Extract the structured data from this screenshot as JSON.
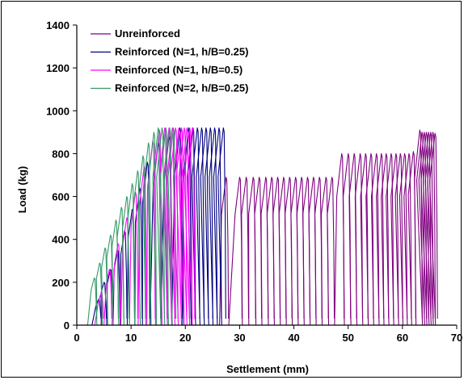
{
  "chart_data": {
    "type": "line",
    "title": "",
    "xlabel": "Settlement (mm)",
    "ylabel": "Load (kg)",
    "xlim": [
      0,
      70
    ],
    "ylim": [
      0,
      1400
    ],
    "x_ticks": [
      "0",
      "10",
      "20",
      "30",
      "40",
      "50",
      "60",
      "70"
    ],
    "y_ticks": [
      "0",
      "200",
      "400",
      "600",
      "800",
      "1000",
      "1200",
      "1400"
    ],
    "grid": false,
    "legend_position": "top-left",
    "series": [
      {
        "name": "Unreinforced",
        "color": "#800080",
        "cycles": [
          [
            27.5,
            690
          ],
          [
            30.0,
            690
          ],
          [
            31.2,
            690
          ],
          [
            32.5,
            690
          ],
          [
            33.6,
            690
          ],
          [
            34.8,
            690
          ],
          [
            35.9,
            690
          ],
          [
            37.0,
            690
          ],
          [
            38.1,
            690
          ],
          [
            39.2,
            690
          ],
          [
            40.3,
            690
          ],
          [
            41.4,
            690
          ],
          [
            42.5,
            690
          ],
          [
            43.6,
            690
          ],
          [
            44.7,
            690
          ],
          [
            45.9,
            690
          ],
          [
            47.0,
            690
          ],
          [
            48.8,
            800
          ],
          [
            50.0,
            800
          ],
          [
            51.1,
            800
          ],
          [
            52.2,
            800
          ],
          [
            53.2,
            800
          ],
          [
            54.2,
            800
          ],
          [
            55.2,
            800
          ],
          [
            56.1,
            800
          ],
          [
            57.0,
            800
          ],
          [
            57.9,
            800
          ],
          [
            58.8,
            800
          ],
          [
            59.6,
            800
          ],
          [
            60.4,
            800
          ],
          [
            61.2,
            800
          ],
          [
            62.0,
            810
          ],
          [
            63.2,
            910
          ],
          [
            63.6,
            900
          ],
          [
            64.0,
            900
          ],
          [
            64.4,
            900
          ],
          [
            64.8,
            900
          ],
          [
            65.2,
            900
          ],
          [
            65.6,
            900
          ],
          [
            66.0,
            895
          ]
        ]
      },
      {
        "name": "Reinforced (N=1, h/B=0.25)",
        "color": "#000080",
        "cycles": [
          [
            4.0,
            120
          ],
          [
            5.0,
            200
          ],
          [
            6.2,
            260
          ],
          [
            7.5,
            350
          ],
          [
            8.8,
            440
          ],
          [
            10.2,
            540
          ],
          [
            11.6,
            640
          ],
          [
            13.0,
            760
          ],
          [
            15.0,
            850
          ],
          [
            17.0,
            880
          ],
          [
            19.0,
            920
          ],
          [
            20.6,
            920
          ],
          [
            21.4,
            920
          ],
          [
            22.2,
            920
          ],
          [
            23.0,
            920
          ],
          [
            23.8,
            920
          ],
          [
            24.6,
            920
          ],
          [
            25.4,
            920
          ],
          [
            26.2,
            920
          ],
          [
            27.0,
            920
          ]
        ]
      },
      {
        "name": "Reinforced (N=1, h/B=0.5)",
        "color": "#FF00FF",
        "cycles": [
          [
            4.5,
            150
          ],
          [
            6.0,
            260
          ],
          [
            7.6,
            380
          ],
          [
            9.2,
            500
          ],
          [
            10.8,
            620
          ],
          [
            12.4,
            740
          ],
          [
            14.0,
            860
          ],
          [
            15.2,
            910
          ],
          [
            16.2,
            920
          ],
          [
            17.0,
            920
          ],
          [
            17.6,
            920
          ],
          [
            18.2,
            920
          ],
          [
            18.8,
            920
          ],
          [
            19.3,
            920
          ],
          [
            19.8,
            920
          ],
          [
            20.3,
            920
          ],
          [
            20.8,
            920
          ],
          [
            21.3,
            920
          ]
        ]
      },
      {
        "name": "Reinforced (N=2, h/B=0.25)",
        "color": "#339966",
        "cycles": [
          [
            3.2,
            220
          ],
          [
            4.2,
            290
          ],
          [
            5.2,
            360
          ],
          [
            6.2,
            420
          ],
          [
            7.2,
            490
          ],
          [
            8.2,
            550
          ],
          [
            9.2,
            600
          ],
          [
            10.2,
            660
          ],
          [
            11.2,
            720
          ],
          [
            12.2,
            790
          ],
          [
            13.2,
            850
          ],
          [
            14.2,
            900
          ],
          [
            15.0,
            920
          ],
          [
            15.7,
            920
          ],
          [
            16.4,
            920
          ],
          [
            17.1,
            920
          ],
          [
            17.8,
            920
          ]
        ]
      }
    ]
  }
}
